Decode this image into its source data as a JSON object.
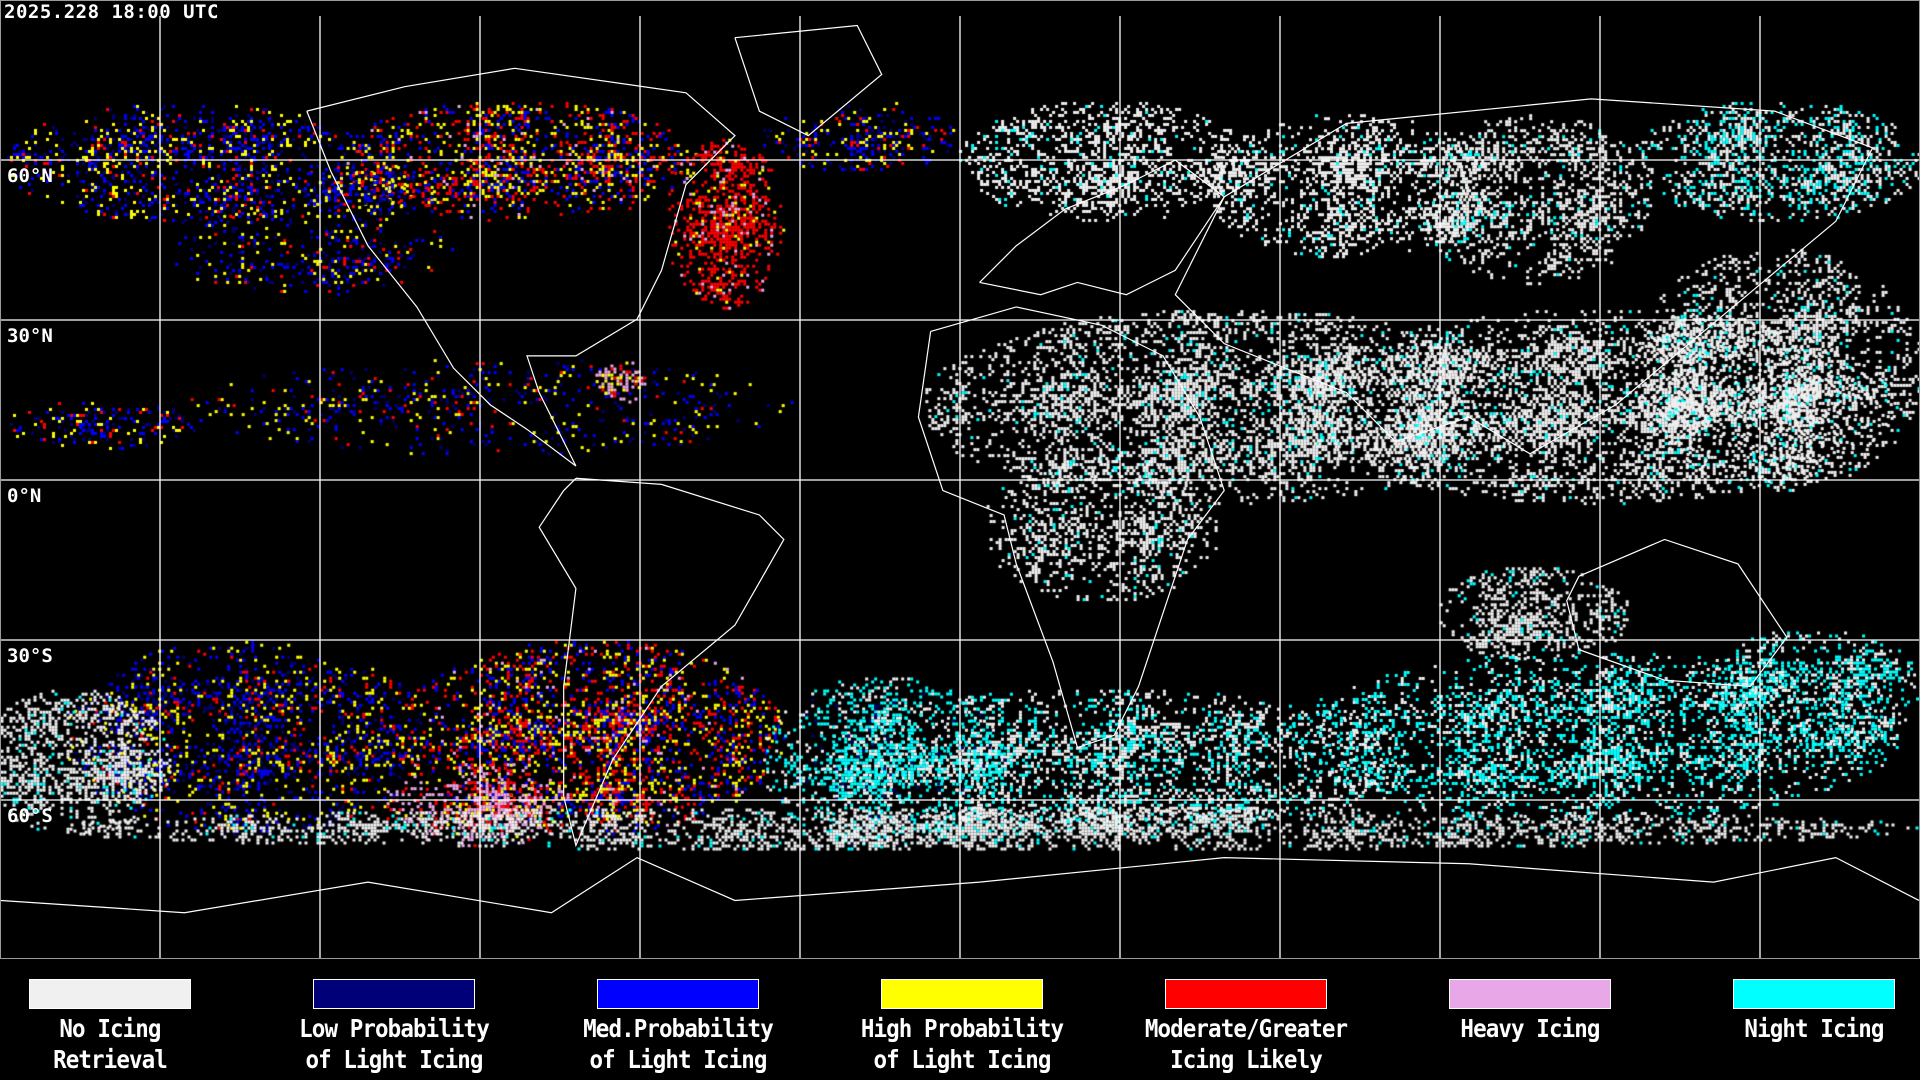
{
  "timestamp": "2025.228 18:00 UTC",
  "lat_labels": [
    "60°N",
    "30°N",
    "0°N",
    "30°S",
    "60°S"
  ],
  "legend": [
    {
      "line1": "No Icing",
      "line2": "Retrieval",
      "color": "#f0f0f0"
    },
    {
      "line1": "Low Probability",
      "line2": "of Light Icing",
      "color": "#000078"
    },
    {
      "line1": "Med.Probability",
      "line2": "of Light Icing",
      "color": "#0000ff"
    },
    {
      "line1": "High Probability",
      "line2": "of Light Icing",
      "color": "#ffff00"
    },
    {
      "line1": "Moderate/Greater",
      "line2": "Icing Likely",
      "color": "#ff0000"
    },
    {
      "line1": "Heavy Icing",
      "line2": "",
      "color": "#e8a8e8"
    },
    {
      "line1": "Night Icing",
      "line2": "",
      "color": "#00ffff"
    }
  ],
  "map": {
    "grid_spacing_deg": 30,
    "background": "#000000",
    "coastline_color": "#ffffff",
    "grid_color": "#ffffff"
  }
}
